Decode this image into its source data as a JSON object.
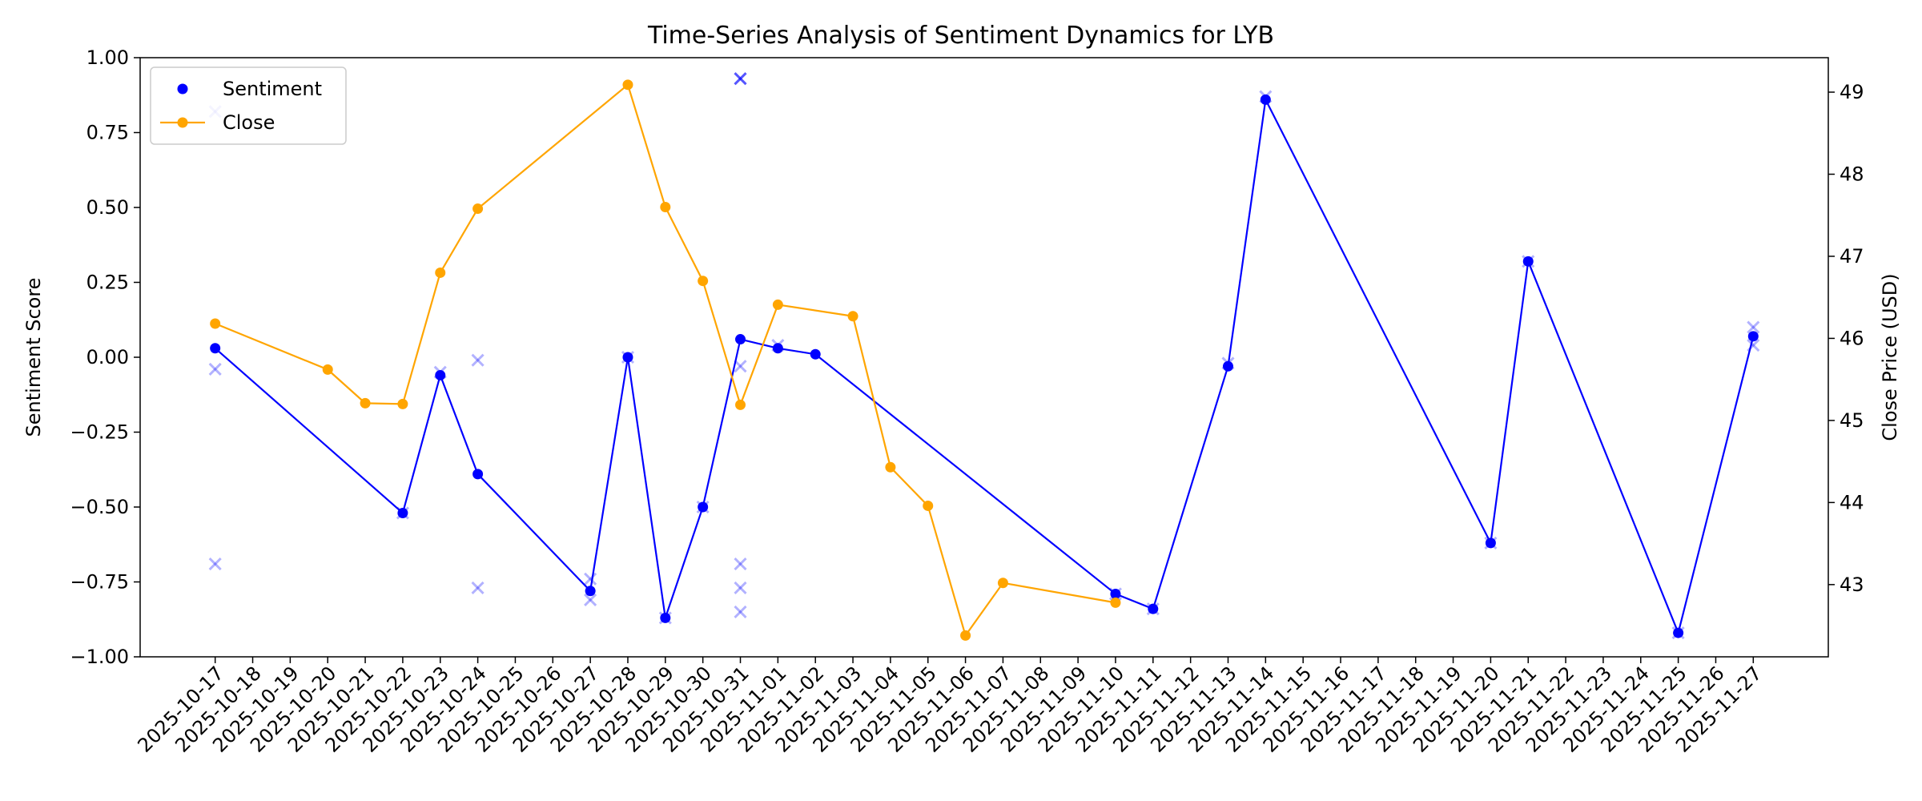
{
  "chart_data": {
    "type": "line",
    "title": "Time-Series Analysis of Sentiment Dynamics for LYB",
    "xlabel": "",
    "ylabel": "Sentiment Score",
    "y2label": "Close Price (USD)",
    "ylim": [
      -1.0,
      1.0
    ],
    "y2lim": [
      42.12,
      49.42
    ],
    "xlim": [
      "2025-10-15",
      "2025-11-29"
    ],
    "y_ticks": [
      "1.00",
      "0.75",
      "0.50",
      "0.25",
      "0.00",
      "−0.25",
      "−0.50",
      "−0.75",
      "−1.00"
    ],
    "y2_ticks": [
      "43",
      "44",
      "45",
      "46",
      "47",
      "48",
      "49"
    ],
    "x_ticks": [
      "2025-10-17",
      "2025-10-18",
      "2025-10-19",
      "2025-10-20",
      "2025-10-21",
      "2025-10-22",
      "2025-10-23",
      "2025-10-24",
      "2025-10-25",
      "2025-10-26",
      "2025-10-27",
      "2025-10-28",
      "2025-10-29",
      "2025-10-30",
      "2025-10-31",
      "2025-11-01",
      "2025-11-02",
      "2025-11-03",
      "2025-11-04",
      "2025-11-05",
      "2025-11-06",
      "2025-11-07",
      "2025-11-08",
      "2025-11-09",
      "2025-11-10",
      "2025-11-11",
      "2025-11-12",
      "2025-11-13",
      "2025-11-14",
      "2025-11-15",
      "2025-11-16",
      "2025-11-17",
      "2025-11-18",
      "2025-11-19",
      "2025-11-20",
      "2025-11-21",
      "2025-11-22",
      "2025-11-23",
      "2025-11-24",
      "2025-11-25",
      "2025-11-26",
      "2025-11-27"
    ],
    "grid": false,
    "legend_position": "top-left",
    "series": [
      {
        "name": "Sentiment",
        "axis": "left",
        "color": "#0000ff",
        "marker": "circle",
        "points": [
          {
            "x": "2025-10-17",
            "y": 0.03
          },
          {
            "x": "2025-10-22",
            "y": -0.52
          },
          {
            "x": "2025-10-23",
            "y": -0.06
          },
          {
            "x": "2025-10-24",
            "y": -0.39
          },
          {
            "x": "2025-10-27",
            "y": -0.78
          },
          {
            "x": "2025-10-28",
            "y": 0.0
          },
          {
            "x": "2025-10-29",
            "y": -0.87
          },
          {
            "x": "2025-10-30",
            "y": -0.5
          },
          {
            "x": "2025-10-31",
            "y": 0.06
          },
          {
            "x": "2025-11-01",
            "y": 0.03
          },
          {
            "x": "2025-11-02",
            "y": 0.01
          },
          {
            "x": "2025-11-10",
            "y": -0.79
          },
          {
            "x": "2025-11-11",
            "y": -0.84
          },
          {
            "x": "2025-11-13",
            "y": -0.03
          },
          {
            "x": "2025-11-14",
            "y": 0.86
          },
          {
            "x": "2025-11-20",
            "y": -0.62
          },
          {
            "x": "2025-11-21",
            "y": 0.32
          },
          {
            "x": "2025-11-25",
            "y": -0.92
          },
          {
            "x": "2025-11-27",
            "y": 0.07
          }
        ]
      },
      {
        "name": "Close",
        "axis": "right",
        "color": "#ffa500",
        "marker": "circle",
        "points": [
          {
            "x": "2025-10-17",
            "y": 46.18
          },
          {
            "x": "2025-10-20",
            "y": 45.62
          },
          {
            "x": "2025-10-21",
            "y": 45.21
          },
          {
            "x": "2025-10-22",
            "y": 45.2
          },
          {
            "x": "2025-10-23",
            "y": 46.8
          },
          {
            "x": "2025-10-24",
            "y": 47.58
          },
          {
            "x": "2025-10-28",
            "y": 49.09
          },
          {
            "x": "2025-10-29",
            "y": 47.6
          },
          {
            "x": "2025-10-30",
            "y": 46.7
          },
          {
            "x": "2025-10-31",
            "y": 45.19
          },
          {
            "x": "2025-11-01",
            "y": 46.41
          },
          {
            "x": "2025-11-03",
            "y": 46.27
          },
          {
            "x": "2025-11-04",
            "y": 44.43
          },
          {
            "x": "2025-11-05",
            "y": 43.96
          },
          {
            "x": "2025-11-06",
            "y": 42.38
          },
          {
            "x": "2025-11-07",
            "y": 43.02
          },
          {
            "x": "2025-11-10",
            "y": 42.78
          }
        ]
      },
      {
        "name": "",
        "axis": "left",
        "color": "#0000ff",
        "opacity": 0.3,
        "marker": "x",
        "points": [
          {
            "x": "2025-10-17",
            "y": 0.82
          },
          {
            "x": "2025-10-17",
            "y": -0.04
          },
          {
            "x": "2025-10-17",
            "y": -0.69
          },
          {
            "x": "2025-10-22",
            "y": -0.52
          },
          {
            "x": "2025-10-23",
            "y": -0.05
          },
          {
            "x": "2025-10-24",
            "y": -0.01
          },
          {
            "x": "2025-10-24",
            "y": -0.77
          },
          {
            "x": "2025-10-27",
            "y": -0.74
          },
          {
            "x": "2025-10-27",
            "y": -0.81
          },
          {
            "x": "2025-10-28",
            "y": 0.0
          },
          {
            "x": "2025-10-29",
            "y": -0.87
          },
          {
            "x": "2025-10-30",
            "y": -0.5
          },
          {
            "x": "2025-10-31",
            "y": 0.93
          },
          {
            "x": "2025-10-31",
            "y": 0.93
          },
          {
            "x": "2025-10-31",
            "y": 0.93
          },
          {
            "x": "2025-10-31",
            "y": -0.03
          },
          {
            "x": "2025-10-31",
            "y": -0.69
          },
          {
            "x": "2025-10-31",
            "y": -0.77
          },
          {
            "x": "2025-10-31",
            "y": -0.85
          },
          {
            "x": "2025-11-01",
            "y": 0.04
          },
          {
            "x": "2025-11-10",
            "y": -0.79
          },
          {
            "x": "2025-11-11",
            "y": -0.84
          },
          {
            "x": "2025-11-13",
            "y": -0.02
          },
          {
            "x": "2025-11-14",
            "y": 0.87
          },
          {
            "x": "2025-11-20",
            "y": -0.62
          },
          {
            "x": "2025-11-21",
            "y": 0.32
          },
          {
            "x": "2025-11-25",
            "y": -0.92
          },
          {
            "x": "2025-11-27",
            "y": 0.1
          },
          {
            "x": "2025-11-27",
            "y": 0.04
          }
        ]
      }
    ]
  }
}
